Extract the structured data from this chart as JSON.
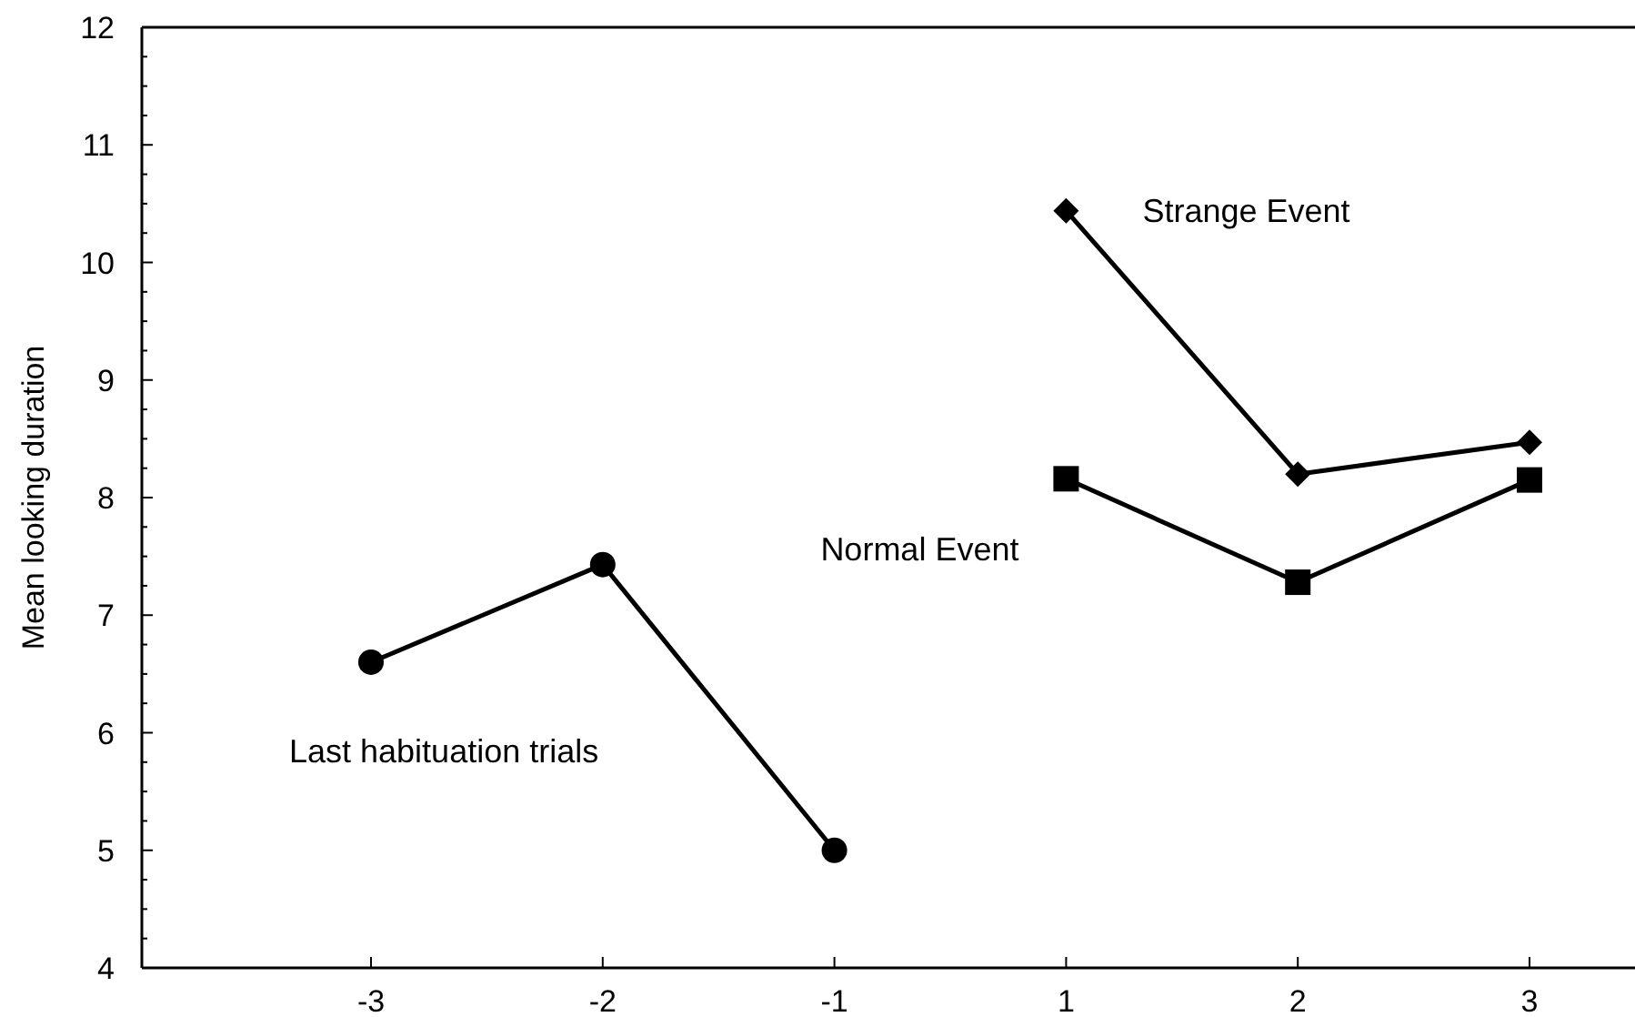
{
  "chart_data": {
    "type": "line",
    "ylabel": "Mean looking duration",
    "categories": [
      "-3",
      "-2",
      "-1",
      "1",
      "2",
      "3"
    ],
    "series": [
      {
        "name": "Last habituation trials",
        "color": "#000000",
        "marker": "circle",
        "values": [
          6.6,
          7.43,
          5.0,
          null,
          null,
          null
        ]
      },
      {
        "name": "Normal Event",
        "color": "#000000",
        "marker": "square",
        "values": [
          null,
          null,
          null,
          8.16,
          7.28,
          8.15
        ]
      },
      {
        "name": "Strange Event",
        "color": "#000000",
        "marker": "diamond",
        "values": [
          null,
          null,
          null,
          10.44,
          8.2,
          8.47
        ]
      }
    ],
    "ylim": [
      4,
      12
    ],
    "yticks": [
      4,
      {
        "value": 4.25,
        "label": null
      },
      {
        "value": 4.5,
        "label": null
      },
      {
        "value": 4.75,
        "label": null
      },
      5,
      {
        "value": 5.25,
        "label": null
      },
      {
        "value": 5.5,
        "label": null
      },
      {
        "value": 5.75,
        "label": null
      },
      6,
      {
        "value": 6.25,
        "label": null
      },
      {
        "value": 6.5,
        "label": null
      },
      {
        "value": 6.75,
        "label": null
      },
      7,
      {
        "value": 7.25,
        "label": null
      },
      {
        "value": 7.5,
        "label": null
      },
      {
        "value": 7.75,
        "label": null
      },
      8,
      {
        "value": 8.25,
        "label": null
      },
      {
        "value": 8.5,
        "label": null
      },
      {
        "value": 8.75,
        "label": null
      },
      9,
      {
        "value": 9.25,
        "label": null
      },
      {
        "value": 9.5,
        "label": null
      },
      {
        "value": 9.75,
        "label": null
      },
      10,
      {
        "value": 10.25,
        "label": null
      },
      {
        "value": 10.5,
        "label": null
      },
      {
        "value": 10.75,
        "label": null
      },
      11,
      {
        "value": 11.25,
        "label": null
      },
      {
        "value": 11.5,
        "label": null
      },
      {
        "value": 11.75,
        "label": null
      },
      12
    ],
    "grid": false,
    "line_style": "solid"
  }
}
